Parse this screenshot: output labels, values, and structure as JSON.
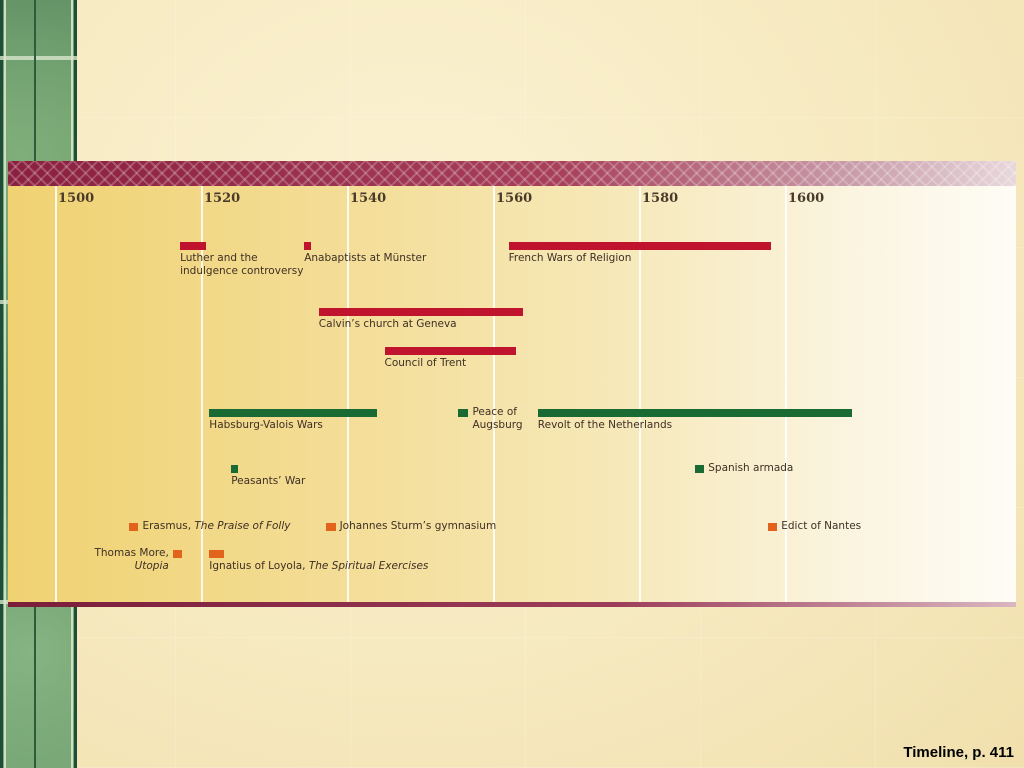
{
  "caption": "Timeline, p. 411",
  "colors": {
    "religious_conflict": "#c0132d",
    "wars": "#1a6a34",
    "humanism_education": "#e2641c",
    "header_band": "#8a1f3f"
  },
  "timeline": {
    "years": [
      "1500",
      "1520",
      "1540",
      "1560",
      "1580",
      "1600"
    ],
    "events": [
      {
        "id": "luther",
        "start": 1517,
        "end": 1520.5,
        "color": "religious_conflict",
        "label_lines": [
          "Luther and the",
          "indulgence controversy"
        ]
      },
      {
        "id": "anabaptists",
        "start": 1534,
        "end": 1535,
        "color": "religious_conflict",
        "label_lines": [
          "Anabaptists at Münster"
        ]
      },
      {
        "id": "french-wars",
        "start": 1562,
        "end": 1598,
        "color": "religious_conflict",
        "label_lines": [
          "French Wars of Religion"
        ]
      },
      {
        "id": "calvin",
        "start": 1536,
        "end": 1564,
        "color": "religious_conflict",
        "label_lines": [
          "Calvin’s church at Geneva"
        ]
      },
      {
        "id": "trent",
        "start": 1545,
        "end": 1563,
        "color": "religious_conflict",
        "label_lines": [
          "Council of Trent"
        ]
      },
      {
        "id": "habsburg-valois",
        "start": 1521,
        "end": 1544,
        "color": "wars",
        "label_lines": [
          "Habsburg-Valois Wars"
        ]
      },
      {
        "id": "augsburg",
        "start": 1555,
        "end": 1556.5,
        "color": "wars",
        "label_lines": [
          "Peace of",
          "Augsburg"
        ]
      },
      {
        "id": "netherlands",
        "start": 1566,
        "end": 1609,
        "color": "wars",
        "label_lines": [
          "Revolt of the Netherlands"
        ]
      },
      {
        "id": "peasants-war",
        "start": 1524,
        "end": 1525,
        "color": "wars",
        "label_lines": [
          "Peasants’ War"
        ]
      },
      {
        "id": "armada",
        "start": 1587.5,
        "end": 1588.8,
        "color": "wars",
        "label_lines": [
          "Spanish armada"
        ]
      },
      {
        "id": "erasmus",
        "start": 1510,
        "end": 1511.3,
        "color": "humanism_education",
        "label_prefix": "Erasmus, ",
        "label_italic": "The Praise of Folly"
      },
      {
        "id": "sturm",
        "start": 1537,
        "end": 1538.3,
        "color": "humanism_education",
        "label_lines": [
          "Johannes Sturm’s gymnasium"
        ]
      },
      {
        "id": "nantes",
        "start": 1597.5,
        "end": 1598.8,
        "color": "humanism_education",
        "label_lines": [
          "Edict of Nantes"
        ]
      },
      {
        "id": "more",
        "start": 1516,
        "end": 1517.3,
        "color": "humanism_education",
        "label_prefix": "Thomas More,",
        "label_italic": "Utopia"
      },
      {
        "id": "loyola",
        "start": 1521,
        "end": 1523,
        "color": "humanism_education",
        "label_prefix": "Ignatius of Loyola, ",
        "label_italic": "The Spiritual Exercises"
      }
    ]
  }
}
